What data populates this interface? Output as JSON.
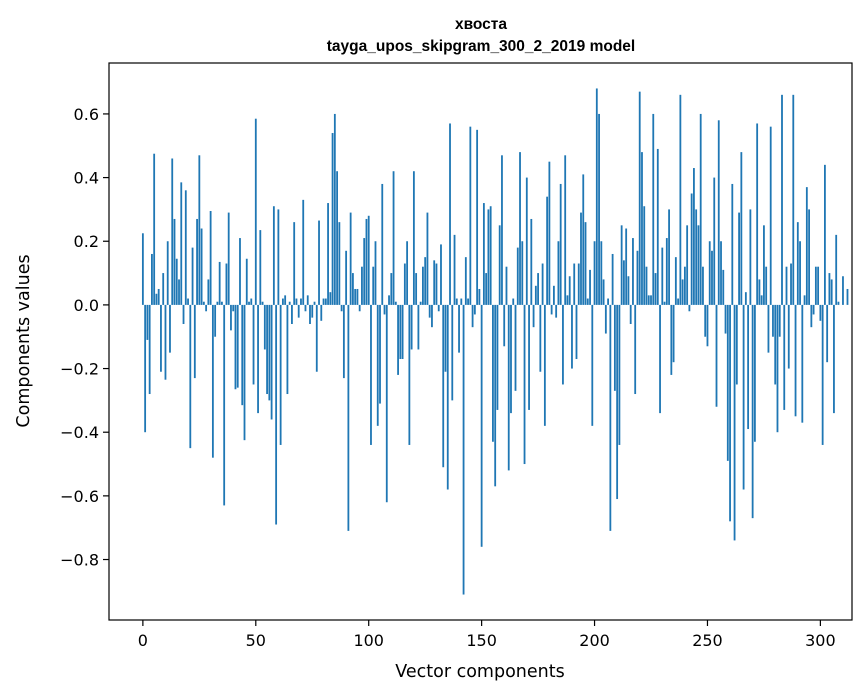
{
  "chart_data": {
    "type": "bar",
    "title_line1": "хвоста",
    "title_line2": "tayga_upos_skipgram_300_2_2019 model",
    "xlabel": "Vector components",
    "ylabel": "Components values",
    "xlim": [
      -15,
      314
    ],
    "ylim": [
      -0.99,
      0.76
    ],
    "xticks": [
      0,
      50,
      100,
      150,
      200,
      250,
      300
    ],
    "xtick_labels": [
      "0",
      "50",
      "100",
      "150",
      "200",
      "250",
      "300"
    ],
    "yticks": [
      -0.8,
      -0.6,
      -0.4,
      -0.2,
      0.0,
      0.2,
      0.4,
      0.6
    ],
    "ytick_labels": [
      "−0.8",
      "−0.6",
      "−0.4",
      "−0.2",
      "0.0",
      "0.2",
      "0.4",
      "0.6"
    ],
    "bar_color": "#1f77b4",
    "values": [
      0.225,
      -0.4,
      -0.11,
      -0.28,
      0.16,
      0.475,
      0.035,
      0.05,
      -0.21,
      0.1,
      -0.235,
      0.2,
      -0.15,
      0.46,
      0.27,
      0.145,
      0.08,
      0.385,
      -0.06,
      0.36,
      0.02,
      -0.45,
      0.18,
      -0.23,
      0.27,
      0.47,
      0.24,
      0.01,
      -0.02,
      0.08,
      0.295,
      -0.48,
      -0.1,
      0.01,
      0.135,
      0.01,
      -0.63,
      0.13,
      0.29,
      -0.08,
      -0.02,
      -0.265,
      -0.26,
      0.21,
      -0.315,
      -0.425,
      0.145,
      0.01,
      0.02,
      -0.25,
      0.585,
      -0.34,
      0.235,
      0.01,
      -0.14,
      -0.28,
      -0.3,
      -0.36,
      0.31,
      -0.69,
      0.3,
      -0.44,
      0.02,
      0.03,
      -0.28,
      0.01,
      -0.06,
      0.26,
      0.02,
      -0.04,
      0.02,
      0.33,
      -0.02,
      0.03,
      -0.06,
      -0.04,
      0.01,
      -0.21,
      0.265,
      -0.05,
      0.02,
      0.02,
      0.32,
      0.04,
      0.54,
      0.6,
      0.42,
      0.26,
      -0.02,
      -0.23,
      0.17,
      -0.71,
      0.29,
      0.1,
      0.05,
      0.05,
      -0.02,
      0.12,
      0.21,
      0.27,
      0.28,
      -0.44,
      0.12,
      0.2,
      -0.38,
      -0.31,
      0.38,
      -0.03,
      -0.62,
      0.03,
      0.1,
      0.42,
      0.01,
      -0.22,
      -0.17,
      -0.17,
      0.13,
      0.2,
      -0.44,
      -0.14,
      0.42,
      0.1,
      -0.14,
      0.01,
      0.12,
      0.15,
      0.29,
      -0.04,
      -0.07,
      0.14,
      0.13,
      -0.02,
      0.19,
      -0.51,
      -0.21,
      -0.58,
      0.57,
      -0.3,
      0.22,
      0.02,
      -0.15,
      0.02,
      -0.91,
      0.15,
      0.02,
      0.56,
      -0.07,
      -0.03,
      0.55,
      0.05,
      -0.76,
      0.32,
      0.1,
      0.3,
      0.31,
      -0.43,
      -0.57,
      -0.33,
      0.25,
      0.47,
      -0.13,
      0.12,
      -0.52,
      -0.34,
      0.02,
      -0.27,
      0.18,
      0.48,
      0.2,
      -0.5,
      0.4,
      -0.33,
      0.27,
      -0.07,
      0.06,
      0.1,
      -0.21,
      0.13,
      -0.38,
      0.34,
      0.45,
      -0.03,
      0.06,
      -0.04,
      0.2,
      0.38,
      -0.25,
      0.47,
      0.03,
      0.09,
      -0.2,
      0.13,
      -0.17,
      0.13,
      0.29,
      0.41,
      0.26,
      0.02,
      0.11,
      -0.38,
      0.2,
      0.68,
      0.6,
      0.2,
      0.08,
      -0.09,
      0.02,
      -0.71,
      0.16,
      -0.27,
      -0.61,
      -0.44,
      0.25,
      0.14,
      0.24,
      0.09,
      -0.06,
      0.21,
      -0.28,
      0.17,
      0.67,
      0.48,
      0.31,
      0.12,
      0.03,
      0.03,
      0.6,
      0.1,
      0.49,
      -0.34,
      0.18,
      0.01,
      0.21,
      0.3,
      -0.22,
      -0.18,
      0.15,
      0.02,
      0.66,
      0.08,
      0.12,
      0.25,
      -0.02,
      0.35,
      0.43,
      0.3,
      0.25,
      0.6,
      0.12,
      -0.1,
      -0.13,
      0.2,
      0.17,
      0.4,
      -0.32,
      0.58,
      0.2,
      0.11,
      -0.09,
      -0.49,
      -0.68,
      0.38,
      -0.74,
      -0.25,
      0.29,
      0.48,
      -0.58,
      0.04,
      -0.39,
      0.3,
      -0.67,
      -0.43,
      0.57,
      0.08,
      0.03,
      0.25,
      0.12,
      -0.15,
      0.56,
      -0.1,
      -0.25,
      -0.4,
      -0.1,
      0.66,
      -0.33,
      0.12,
      -0.2,
      0.13,
      0.66,
      -0.35,
      0.26,
      0.2,
      -0.37,
      0.03,
      0.37,
      0.3,
      -0.07,
      -0.03,
      0.12,
      0.12,
      -0.05,
      -0.44,
      0.44,
      -0.18,
      0.1,
      0.08,
      -0.34,
      0.22,
      0.01,
      0.0,
      0.09,
      0.0,
      0.05,
      0.0
    ]
  }
}
